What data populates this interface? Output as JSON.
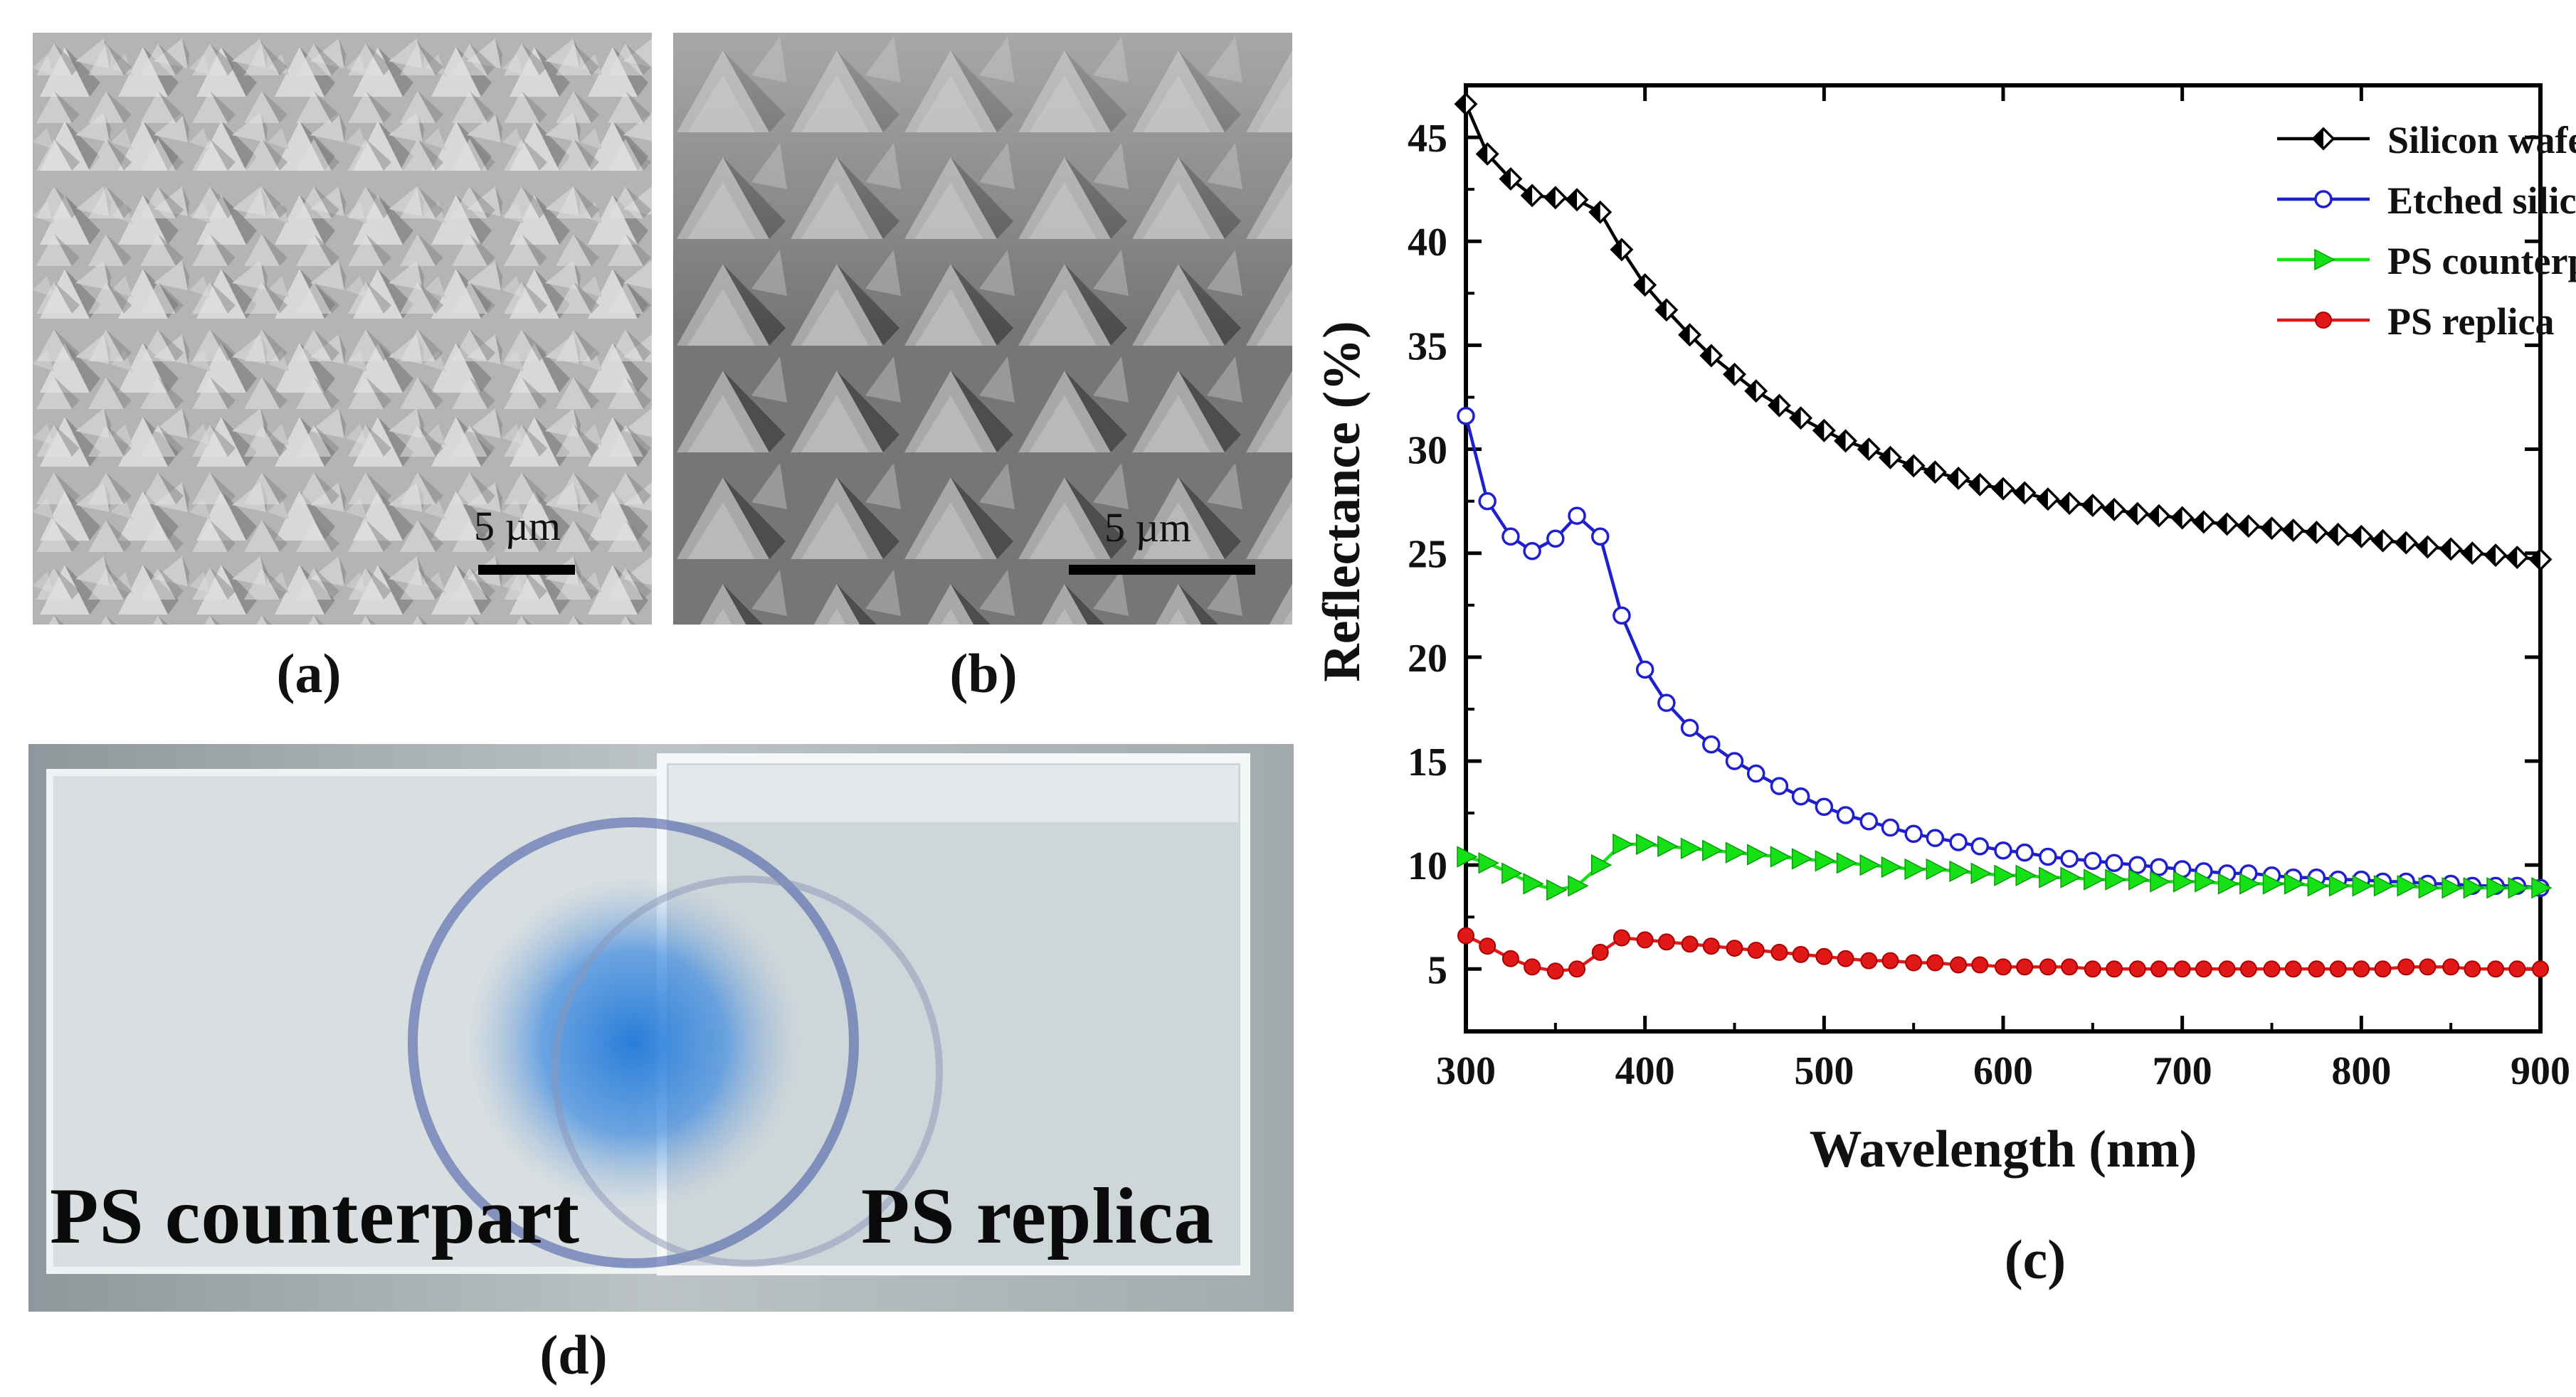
{
  "panels": {
    "a": {
      "caption": "(a)",
      "scale_label": "5 µm",
      "description_icon": "sem-top-view"
    },
    "b": {
      "caption": "(b)",
      "scale_label": "5 µm",
      "description_icon": "sem-tilted-view"
    },
    "c": {
      "caption": "(c)"
    },
    "d": {
      "caption": "(d)",
      "left_label": "PS counterpart",
      "right_label": "PS replica"
    }
  },
  "chart_data": {
    "type": "line",
    "title": "",
    "xlabel": "Wavelength (nm)",
    "ylabel": "Reflectance (%)",
    "xlim": [
      300,
      900
    ],
    "ylim": [
      2,
      47.5
    ],
    "xticks": [
      300,
      400,
      500,
      600,
      700,
      800,
      900
    ],
    "yticks": [
      5,
      10,
      15,
      20,
      25,
      30,
      35,
      40,
      45
    ],
    "legend_position": "top-right",
    "series": [
      {
        "name": "Silicon wafer",
        "color": "#000000",
        "marker": "half-diamond",
        "x": [
          300,
          312,
          325,
          337,
          350,
          362,
          375,
          387,
          400,
          412,
          425,
          437,
          450,
          462,
          475,
          487,
          500,
          512,
          525,
          537,
          550,
          562,
          575,
          587,
          600,
          612,
          625,
          637,
          650,
          662,
          675,
          687,
          700,
          712,
          725,
          737,
          750,
          762,
          775,
          787,
          800,
          812,
          825,
          837,
          850,
          862,
          875,
          887,
          900
        ],
        "y": [
          46.6,
          44.2,
          43.0,
          42.2,
          42.1,
          42.0,
          41.4,
          39.6,
          37.9,
          36.7,
          35.5,
          34.5,
          33.6,
          32.8,
          32.1,
          31.5,
          30.9,
          30.4,
          30.0,
          29.6,
          29.2,
          28.9,
          28.6,
          28.3,
          28.1,
          27.9,
          27.6,
          27.4,
          27.3,
          27.1,
          26.9,
          26.8,
          26.7,
          26.5,
          26.4,
          26.3,
          26.2,
          26.1,
          26.0,
          25.9,
          25.8,
          25.6,
          25.5,
          25.3,
          25.2,
          25.0,
          24.9,
          24.8,
          24.7
        ]
      },
      {
        "name": "Etched silicon wafer",
        "color": "#1f1fd0",
        "marker": "circle",
        "x": [
          300,
          312,
          325,
          337,
          350,
          362,
          375,
          387,
          400,
          412,
          425,
          437,
          450,
          462,
          475,
          487,
          500,
          512,
          525,
          537,
          550,
          562,
          575,
          587,
          600,
          612,
          625,
          637,
          650,
          662,
          675,
          687,
          700,
          712,
          725,
          737,
          750,
          762,
          775,
          787,
          800,
          812,
          825,
          837,
          850,
          862,
          875,
          887,
          900
        ],
        "y": [
          31.6,
          27.5,
          25.8,
          25.1,
          25.7,
          26.8,
          25.8,
          22.0,
          19.4,
          17.8,
          16.6,
          15.8,
          15.0,
          14.4,
          13.8,
          13.3,
          12.8,
          12.4,
          12.1,
          11.8,
          11.5,
          11.3,
          11.1,
          10.9,
          10.7,
          10.6,
          10.4,
          10.3,
          10.2,
          10.1,
          10.0,
          9.9,
          9.8,
          9.7,
          9.6,
          9.6,
          9.5,
          9.4,
          9.4,
          9.3,
          9.3,
          9.2,
          9.2,
          9.1,
          9.1,
          9.0,
          9.0,
          9.0,
          8.9
        ]
      },
      {
        "name": "PS counterpart",
        "color": "#16e016",
        "marker": "triangle-right",
        "x": [
          300,
          312,
          325,
          337,
          350,
          362,
          375,
          387,
          400,
          412,
          425,
          437,
          450,
          462,
          475,
          487,
          500,
          512,
          525,
          537,
          550,
          562,
          575,
          587,
          600,
          612,
          625,
          637,
          650,
          662,
          675,
          687,
          700,
          712,
          725,
          737,
          750,
          762,
          775,
          787,
          800,
          812,
          825,
          837,
          850,
          862,
          875,
          887,
          900
        ],
        "y": [
          10.4,
          10.1,
          9.6,
          9.1,
          8.8,
          9.0,
          10.0,
          11.0,
          11.0,
          10.9,
          10.8,
          10.7,
          10.6,
          10.5,
          10.4,
          10.3,
          10.2,
          10.1,
          10.0,
          9.9,
          9.8,
          9.8,
          9.7,
          9.6,
          9.5,
          9.5,
          9.4,
          9.4,
          9.3,
          9.3,
          9.3,
          9.2,
          9.2,
          9.2,
          9.1,
          9.1,
          9.1,
          9.1,
          9.0,
          9.0,
          9.0,
          9.0,
          9.0,
          8.9,
          8.9,
          8.9,
          8.9,
          8.9,
          8.9
        ]
      },
      {
        "name": "PS replica",
        "color": "#e01818",
        "marker": "circle-filled",
        "x": [
          300,
          312,
          325,
          337,
          350,
          362,
          375,
          387,
          400,
          412,
          425,
          437,
          450,
          462,
          475,
          487,
          500,
          512,
          525,
          537,
          550,
          562,
          575,
          587,
          600,
          612,
          625,
          637,
          650,
          662,
          675,
          687,
          700,
          712,
          725,
          737,
          750,
          762,
          775,
          787,
          800,
          812,
          825,
          837,
          850,
          862,
          875,
          887,
          900
        ],
        "y": [
          6.6,
          6.1,
          5.5,
          5.1,
          4.9,
          5.0,
          5.8,
          6.5,
          6.4,
          6.3,
          6.2,
          6.1,
          6.0,
          5.9,
          5.8,
          5.7,
          5.6,
          5.5,
          5.4,
          5.4,
          5.3,
          5.3,
          5.2,
          5.2,
          5.1,
          5.1,
          5.1,
          5.1,
          5.0,
          5.0,
          5.0,
          5.0,
          5.0,
          5.0,
          5.0,
          5.0,
          5.0,
          5.0,
          5.0,
          5.0,
          5.0,
          5.0,
          5.1,
          5.1,
          5.1,
          5.0,
          5.0,
          5.0,
          5.0
        ]
      }
    ]
  }
}
